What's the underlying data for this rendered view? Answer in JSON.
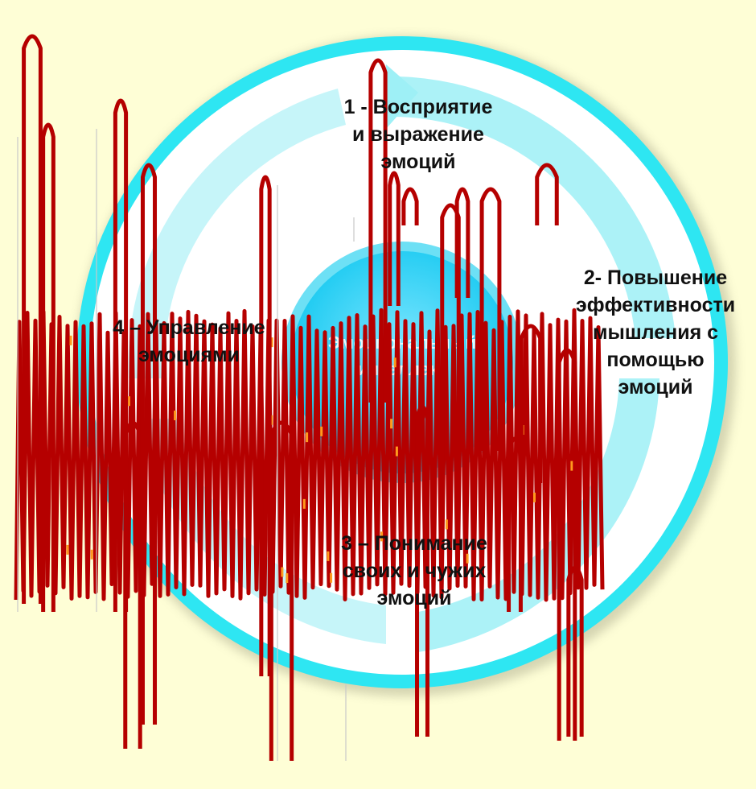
{
  "diagram": {
    "center_text": [
      "Эмоциональный",
      "интеллект"
    ],
    "segments": [
      {
        "id": "1",
        "lines": [
          "1 - Восприятие",
          "и выражение",
          "эмоций"
        ]
      },
      {
        "id": "2",
        "lines": [
          "2- Повышение",
          "эффективности",
          "мышления с",
          "помощью",
          "эмоций"
        ]
      },
      {
        "id": "3",
        "lines": [
          "3 – Понимание",
          "своих и чужих",
          "эмоций"
        ]
      },
      {
        "id": "4",
        "lines": [
          "4 – Управление",
          "эмоциями"
        ]
      }
    ]
  },
  "colors": {
    "background": "#fefed6",
    "outer_ring": "#2ee6f2",
    "inner_disc": "#ffffff",
    "arrow_fill": "#9ef0f6",
    "center_disc": "#14c8f0",
    "scribble": "#b50000",
    "scribble_highlight": "#ff9a1e"
  }
}
